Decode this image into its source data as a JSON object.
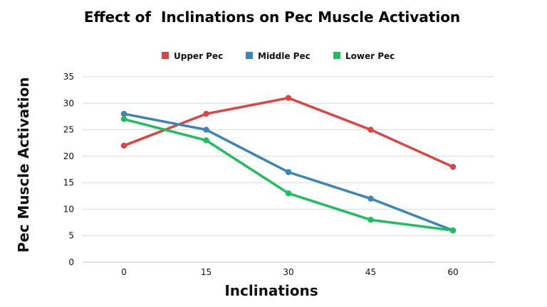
{
  "chart_data": {
    "type": "line",
    "title": "Effect of  Inclinations on Pec Muscle Activation",
    "xlabel": "Inclinations",
    "ylabel": "Pec Muscle Activation",
    "categories": [
      "0",
      "15",
      "30",
      "45",
      "60"
    ],
    "ylim": [
      0,
      35
    ],
    "yticks": [
      0,
      5,
      10,
      15,
      20,
      25,
      30,
      35
    ],
    "grid": true,
    "legend_position": "top-center",
    "series": [
      {
        "name": "Upper Pec",
        "color": "#e04343",
        "values": [
          22,
          28,
          31,
          25,
          18
        ]
      },
      {
        "name": "Middle Pec",
        "color": "#3a86b4",
        "values": [
          28,
          25,
          17,
          12,
          6
        ]
      },
      {
        "name": "Lower Pec",
        "color": "#1fbf60",
        "values": [
          27,
          23,
          13,
          8,
          6
        ]
      }
    ]
  }
}
